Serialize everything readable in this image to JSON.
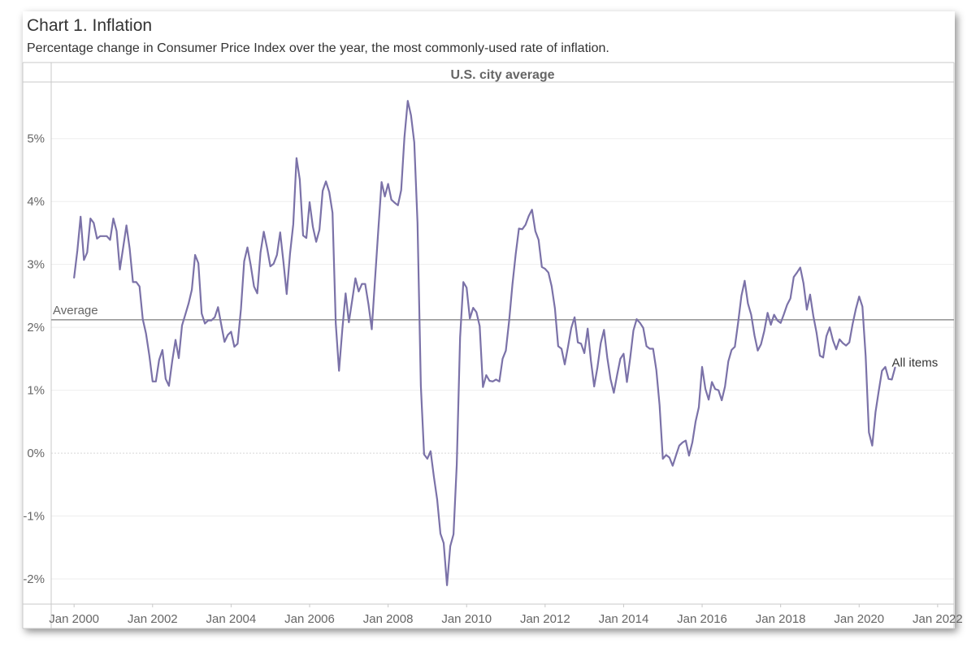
{
  "title": "Chart 1. Inflation",
  "subtitle": "Percentage change in Consumer Price Index over the year, the most commonly-used rate of inflation.",
  "chart_data": {
    "type": "line",
    "panel_header": "U.S. city average",
    "xlabel": "",
    "ylabel": "",
    "ylim": [
      -2.4,
      5.9
    ],
    "y_ticks": [
      -2,
      -1,
      0,
      1,
      2,
      3,
      4,
      5
    ],
    "y_tick_labels": [
      "-2%",
      "-1%",
      "0%",
      "1%",
      "2%",
      "3%",
      "4%",
      "5%"
    ],
    "x_range": [
      "1999-06",
      "2022-06"
    ],
    "x_ticks": [
      "2000-01",
      "2002-01",
      "2004-01",
      "2006-01",
      "2008-01",
      "2010-01",
      "2012-01",
      "2014-01",
      "2016-01",
      "2018-01",
      "2020-01",
      "2022-01"
    ],
    "x_tick_labels": [
      "Jan 2000",
      "Jan 2002",
      "Jan 2004",
      "Jan 2006",
      "Jan 2008",
      "Jan 2010",
      "Jan 2012",
      "Jan 2014",
      "Jan 2016",
      "Jan 2018",
      "Jan 2020",
      "Jan 2022"
    ],
    "grid": true,
    "line_color": "#7b72a8",
    "average_color": "#999999",
    "series": [
      {
        "name": "All items",
        "x_start": "2000-01",
        "frequency": "monthly",
        "values": [
          2.79,
          3.22,
          3.76,
          3.07,
          3.19,
          3.73,
          3.66,
          3.41,
          3.45,
          3.45,
          3.45,
          3.39,
          3.73,
          3.53,
          2.92,
          3.27,
          3.62,
          3.25,
          2.72,
          2.72,
          2.65,
          2.13,
          1.9,
          1.55,
          1.14,
          1.14,
          1.48,
          1.64,
          1.18,
          1.07,
          1.46,
          1.8,
          1.51,
          2.03,
          2.2,
          2.38,
          2.6,
          3.15,
          3.02,
          2.22,
          2.06,
          2.11,
          2.11,
          2.16,
          2.32,
          2.04,
          1.77,
          1.88,
          1.93,
          1.69,
          1.74,
          2.29,
          3.05,
          3.27,
          2.99,
          2.65,
          2.54,
          3.19,
          3.52,
          3.26,
          2.97,
          3.01,
          3.15,
          3.51,
          3.04,
          2.53,
          3.17,
          3.64,
          4.69,
          4.35,
          3.46,
          3.42,
          3.99,
          3.6,
          3.36,
          3.55,
          4.17,
          4.32,
          4.15,
          3.82,
          2.06,
          1.31,
          1.97,
          2.54,
          2.08,
          2.42,
          2.78,
          2.57,
          2.69,
          2.69,
          2.36,
          1.97,
          2.76,
          3.54,
          4.31,
          4.08,
          4.28,
          4.03,
          3.98,
          3.94,
          4.18,
          5.02,
          5.6,
          5.37,
          4.94,
          3.66,
          1.07,
          -0.02,
          -0.09,
          0.03,
          -0.38,
          -0.74,
          -1.28,
          -1.43,
          -2.1,
          -1.48,
          -1.29,
          -0.18,
          1.84,
          2.72,
          2.63,
          2.14,
          2.31,
          2.24,
          2.02,
          1.05,
          1.24,
          1.15,
          1.14,
          1.17,
          1.14,
          1.5,
          1.63,
          2.11,
          2.68,
          3.16,
          3.57,
          3.56,
          3.63,
          3.77,
          3.87,
          3.53,
          3.39,
          2.96,
          2.93,
          2.87,
          2.65,
          2.3,
          1.7,
          1.66,
          1.41,
          1.69,
          1.99,
          2.16,
          1.76,
          1.74,
          1.59,
          1.98,
          1.47,
          1.06,
          1.36,
          1.75,
          1.96,
          1.52,
          1.18,
          0.96,
          1.24,
          1.5,
          1.58,
          1.13,
          1.51,
          1.95,
          2.13,
          2.07,
          1.99,
          1.7,
          1.66,
          1.66,
          1.32,
          0.76,
          -0.09,
          -0.03,
          -0.07,
          -0.2,
          -0.04,
          0.12,
          0.17,
          0.2,
          -0.04,
          0.17,
          0.5,
          0.73,
          1.37,
          1.02,
          0.85,
          1.13,
          1.02,
          1.0,
          0.84,
          1.06,
          1.46,
          1.64,
          1.69,
          2.07,
          2.5,
          2.74,
          2.38,
          2.2,
          1.87,
          1.63,
          1.73,
          1.94,
          2.23,
          2.04,
          2.2,
          2.11,
          2.07,
          2.21,
          2.36,
          2.46,
          2.8,
          2.87,
          2.95,
          2.7,
          2.28,
          2.52,
          2.18,
          1.91,
          1.55,
          1.52,
          1.86,
          2.0,
          1.79,
          1.65,
          1.81,
          1.75,
          1.71,
          1.76,
          2.05,
          2.29,
          2.49,
          2.33,
          1.54,
          0.33,
          0.12,
          0.65,
          0.99,
          1.31,
          1.37,
          1.18,
          1.17,
          1.36
        ]
      }
    ],
    "reference_lines": [
      {
        "label": "Average",
        "value": 2.12
      }
    ],
    "annotations": [
      {
        "text": "All items",
        "anchor": "end of series"
      }
    ]
  }
}
